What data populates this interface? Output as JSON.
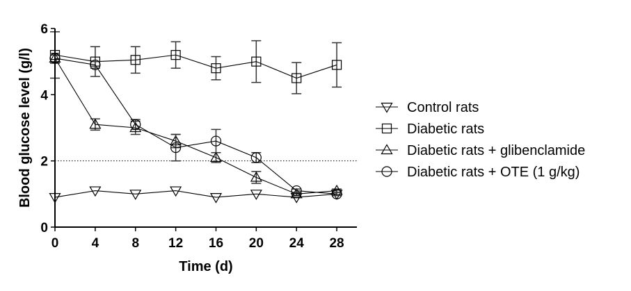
{
  "chart_data": {
    "type": "line",
    "title": "",
    "xlabel": "Time (d)",
    "ylabel": "Blood glucose level (g/l)",
    "xlim": [
      0,
      30
    ],
    "ylim": [
      0,
      6
    ],
    "x_ticks": [
      0,
      4,
      8,
      12,
      16,
      20,
      24,
      28
    ],
    "y_ticks": [
      0,
      2,
      4,
      6
    ],
    "x_tick_labels": [
      "0",
      "4",
      "8",
      "12",
      "16",
      "20",
      "24",
      "28"
    ],
    "y_tick_labels": [
      "0",
      "2",
      "4",
      "6"
    ],
    "grid": false,
    "legend_position": "right",
    "reference_line": {
      "y": 2,
      "style": "dotted"
    },
    "x": [
      0,
      4,
      8,
      12,
      16,
      20,
      24,
      28
    ],
    "series": [
      {
        "name": "Control rats",
        "marker": "triangle-down",
        "values": [
          0.9,
          1.1,
          1.0,
          1.1,
          0.9,
          1.0,
          0.9,
          1.0
        ],
        "error": [
          0,
          0,
          0,
          0,
          0,
          0,
          0,
          0
        ]
      },
      {
        "name": "Diabetic rats",
        "marker": "square",
        "values": [
          5.2,
          5.0,
          5.05,
          5.2,
          4.8,
          5.0,
          4.5,
          4.9
        ],
        "error": [
          0.7,
          0.45,
          0.4,
          0.4,
          0.35,
          0.63,
          0.47,
          0.67
        ]
      },
      {
        "name": "Diabetic rats + glibenclamide",
        "marker": "triangle-up",
        "values": [
          5.1,
          3.1,
          3.0,
          2.6,
          2.1,
          1.5,
          1.0,
          1.1
        ],
        "error": [
          0.15,
          0.17,
          0.2,
          0.2,
          0.15,
          0.18,
          0.05,
          0.05
        ]
      },
      {
        "name": "Diabetic rats + OTE (1 g/kg)",
        "marker": "circle",
        "values": [
          5.1,
          4.9,
          3.1,
          2.4,
          2.6,
          2.1,
          1.1,
          1.0
        ],
        "error": [
          0.1,
          0.1,
          0.15,
          0.4,
          0.35,
          0.15,
          0.05,
          0.05
        ]
      }
    ]
  }
}
